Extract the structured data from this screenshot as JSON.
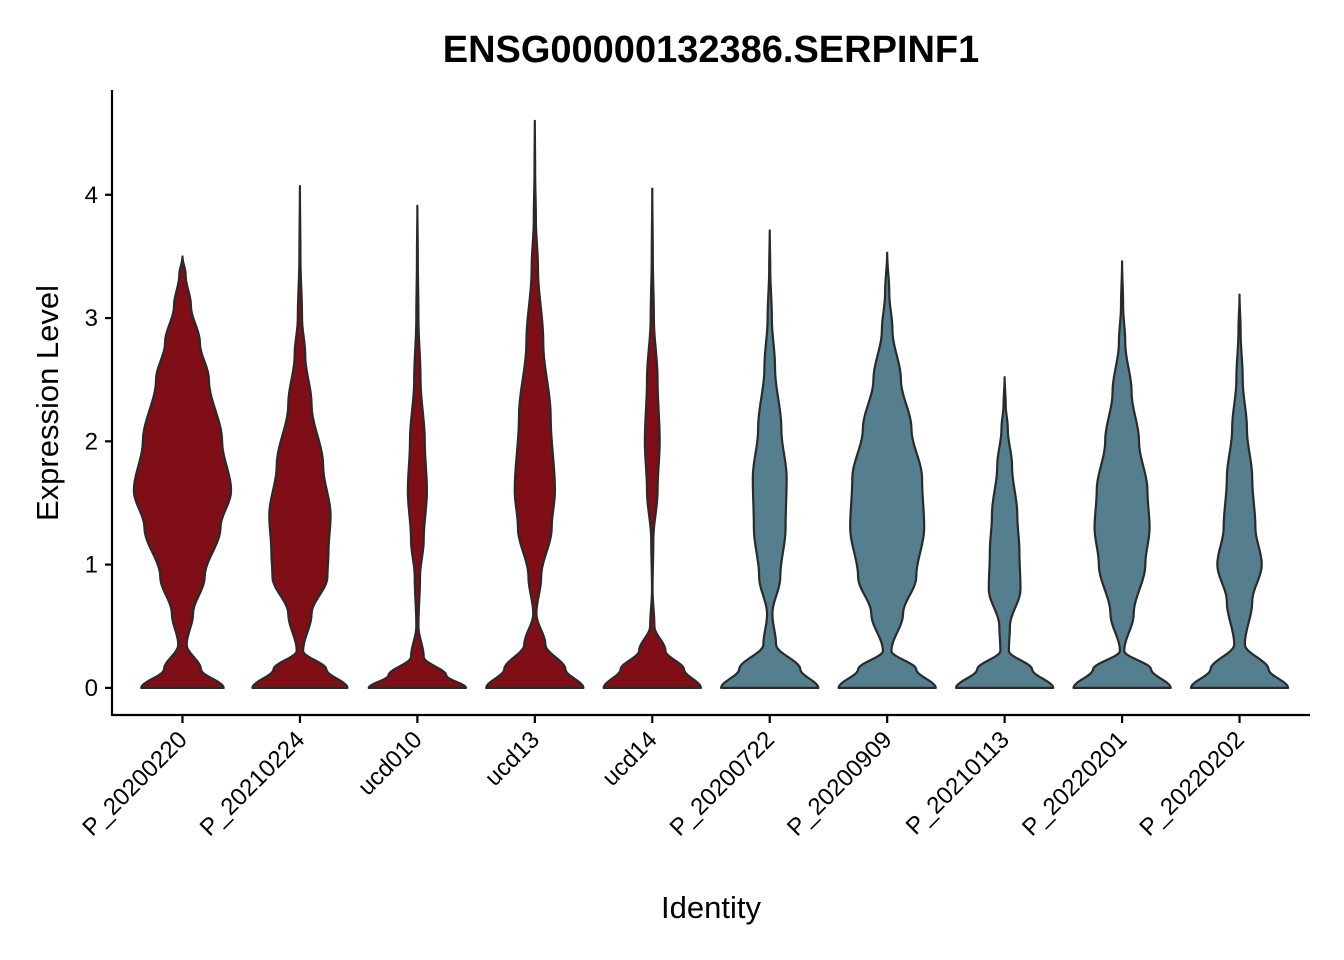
{
  "chart_data": {
    "type": "violin",
    "title": "ENSG00000132386.SERPINF1",
    "xlabel": "Identity",
    "ylabel": "Expression Level",
    "ylim": [
      -0.22,
      4.85
    ],
    "yticks": [
      0,
      1,
      2,
      3,
      4
    ],
    "grid": false,
    "legend": "none",
    "series": [
      {
        "category": "P_20200220",
        "color": "#7f0e17",
        "max": 3.5,
        "density": [
          [
            0,
            0.78
          ],
          [
            0.15,
            0.35
          ],
          [
            0.35,
            0.08
          ],
          [
            0.6,
            0.2
          ],
          [
            0.9,
            0.42
          ],
          [
            1.3,
            0.72
          ],
          [
            1.6,
            0.92
          ],
          [
            2.0,
            0.75
          ],
          [
            2.5,
            0.5
          ],
          [
            2.8,
            0.33
          ],
          [
            3.1,
            0.16
          ],
          [
            3.35,
            0.06
          ],
          [
            3.5,
            0.0
          ]
        ]
      },
      {
        "category": "P_20210224",
        "color": "#7f0e17",
        "max": 4.07,
        "density": [
          [
            0,
            0.9
          ],
          [
            0.15,
            0.5
          ],
          [
            0.3,
            0.06
          ],
          [
            0.6,
            0.22
          ],
          [
            0.9,
            0.52
          ],
          [
            1.1,
            0.54
          ],
          [
            1.4,
            0.58
          ],
          [
            1.8,
            0.44
          ],
          [
            2.3,
            0.22
          ],
          [
            2.7,
            0.1
          ],
          [
            3.0,
            0.04
          ],
          [
            3.5,
            0.01
          ],
          [
            4.07,
            0.0
          ]
        ]
      },
      {
        "category": "ucd010",
        "color": "#7f0e17",
        "max": 3.91,
        "density": [
          [
            0,
            0.92
          ],
          [
            0.1,
            0.55
          ],
          [
            0.25,
            0.12
          ],
          [
            0.5,
            0.02
          ],
          [
            0.9,
            0.05
          ],
          [
            1.2,
            0.12
          ],
          [
            1.6,
            0.18
          ],
          [
            2.0,
            0.14
          ],
          [
            2.5,
            0.06
          ],
          [
            3.0,
            0.02
          ],
          [
            3.5,
            0.008
          ],
          [
            3.91,
            0.0
          ]
        ]
      },
      {
        "category": "ucd13",
        "color": "#7f0e17",
        "max": 4.6,
        "density": [
          [
            0,
            0.92
          ],
          [
            0.15,
            0.58
          ],
          [
            0.35,
            0.2
          ],
          [
            0.6,
            0.03
          ],
          [
            0.9,
            0.12
          ],
          [
            1.3,
            0.32
          ],
          [
            1.6,
            0.38
          ],
          [
            2.2,
            0.3
          ],
          [
            2.8,
            0.16
          ],
          [
            3.4,
            0.06
          ],
          [
            3.8,
            0.02
          ],
          [
            4.2,
            0.006
          ],
          [
            4.6,
            0.0
          ]
        ]
      },
      {
        "category": "ucd14",
        "color": "#7f0e17",
        "max": 4.05,
        "density": [
          [
            0,
            0.92
          ],
          [
            0.15,
            0.6
          ],
          [
            0.3,
            0.25
          ],
          [
            0.5,
            0.04
          ],
          [
            0.8,
            0.005
          ],
          [
            1.2,
            0.02
          ],
          [
            1.6,
            0.1
          ],
          [
            2.0,
            0.14
          ],
          [
            2.5,
            0.1
          ],
          [
            3.0,
            0.03
          ],
          [
            3.5,
            0.01
          ],
          [
            4.05,
            0.0
          ]
        ]
      },
      {
        "category": "P_20200722",
        "color": "#557f8f",
        "max": 3.71,
        "density": [
          [
            0,
            0.92
          ],
          [
            0.15,
            0.58
          ],
          [
            0.35,
            0.12
          ],
          [
            0.6,
            0.05
          ],
          [
            0.9,
            0.2
          ],
          [
            1.3,
            0.3
          ],
          [
            1.7,
            0.32
          ],
          [
            2.1,
            0.22
          ],
          [
            2.6,
            0.1
          ],
          [
            3.0,
            0.04
          ],
          [
            3.4,
            0.01
          ],
          [
            3.71,
            0.0
          ]
        ]
      },
      {
        "category": "P_20200909",
        "color": "#557f8f",
        "max": 3.53,
        "density": [
          [
            0,
            0.92
          ],
          [
            0.15,
            0.55
          ],
          [
            0.3,
            0.08
          ],
          [
            0.6,
            0.3
          ],
          [
            0.9,
            0.55
          ],
          [
            1.3,
            0.7
          ],
          [
            1.7,
            0.66
          ],
          [
            2.1,
            0.46
          ],
          [
            2.5,
            0.26
          ],
          [
            2.9,
            0.1
          ],
          [
            3.2,
            0.04
          ],
          [
            3.53,
            0.0
          ]
        ]
      },
      {
        "category": "P_20210113",
        "color": "#557f8f",
        "max": 2.52,
        "density": [
          [
            0,
            0.92
          ],
          [
            0.15,
            0.52
          ],
          [
            0.3,
            0.08
          ],
          [
            0.5,
            0.1
          ],
          [
            0.8,
            0.3
          ],
          [
            1.1,
            0.28
          ],
          [
            1.4,
            0.24
          ],
          [
            1.8,
            0.14
          ],
          [
            2.1,
            0.06
          ],
          [
            2.3,
            0.02
          ],
          [
            2.52,
            0.0
          ]
        ]
      },
      {
        "category": "P_20220201",
        "color": "#557f8f",
        "max": 3.46,
        "density": [
          [
            0,
            0.92
          ],
          [
            0.15,
            0.55
          ],
          [
            0.3,
            0.04
          ],
          [
            0.6,
            0.22
          ],
          [
            1.0,
            0.44
          ],
          [
            1.3,
            0.52
          ],
          [
            1.6,
            0.48
          ],
          [
            2.0,
            0.32
          ],
          [
            2.4,
            0.18
          ],
          [
            2.8,
            0.06
          ],
          [
            3.1,
            0.02
          ],
          [
            3.46,
            0.0
          ]
        ]
      },
      {
        "category": "P_20220202",
        "color": "#557f8f",
        "max": 3.19,
        "density": [
          [
            0,
            0.92
          ],
          [
            0.15,
            0.55
          ],
          [
            0.35,
            0.1
          ],
          [
            0.7,
            0.24
          ],
          [
            1.0,
            0.42
          ],
          [
            1.3,
            0.3
          ],
          [
            1.7,
            0.24
          ],
          [
            2.1,
            0.14
          ],
          [
            2.5,
            0.06
          ],
          [
            2.9,
            0.02
          ],
          [
            3.19,
            0.0
          ]
        ]
      }
    ]
  }
}
